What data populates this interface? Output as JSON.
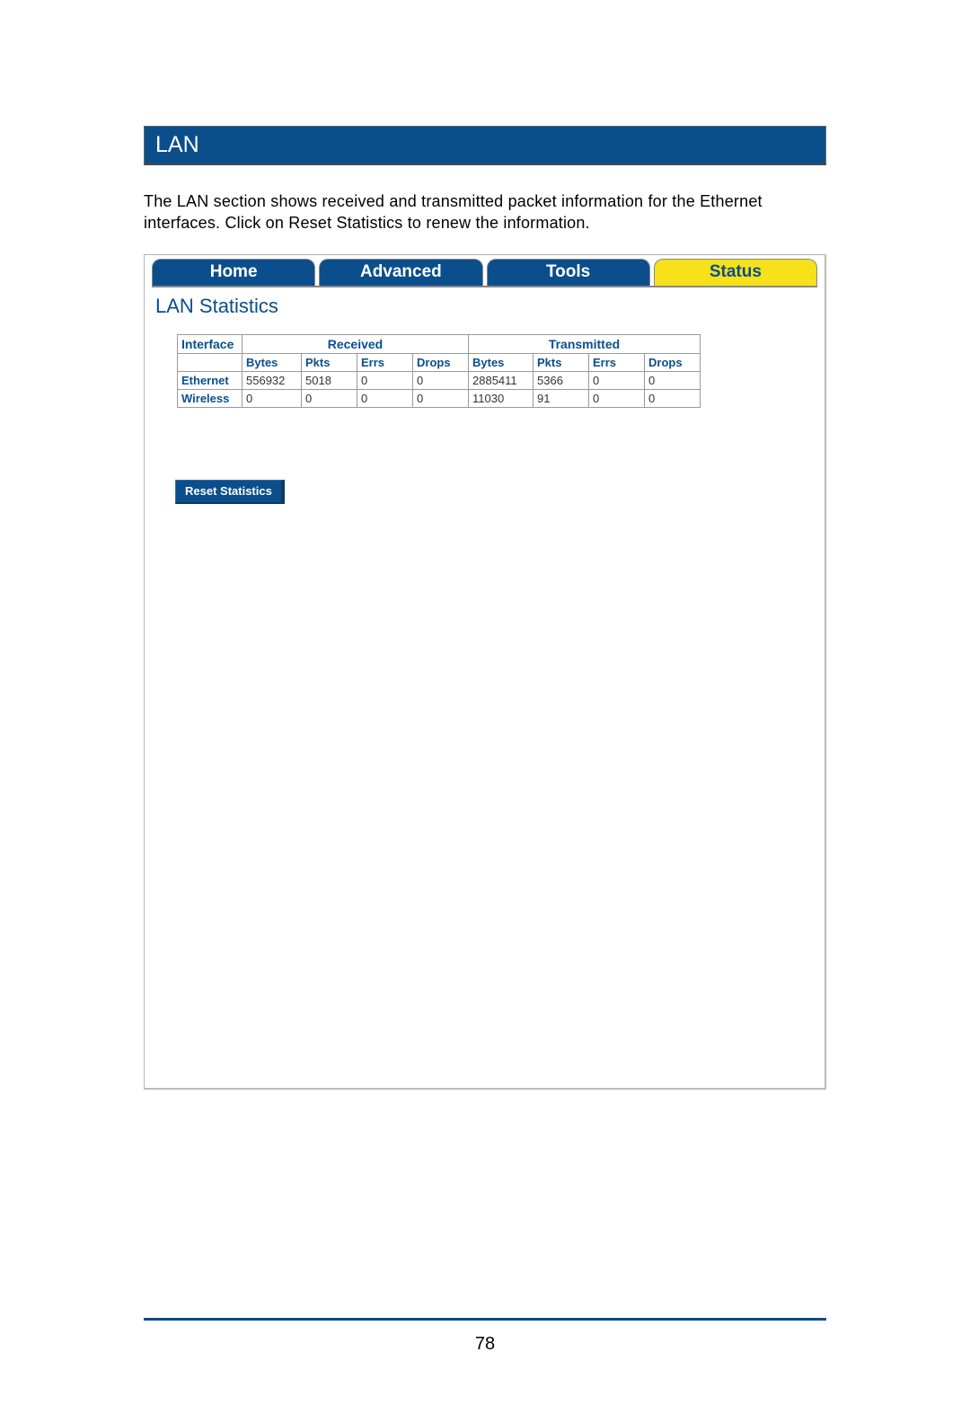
{
  "colors": {
    "header_bg": "#0a4e8c",
    "header_text": "#ffffff",
    "tab_inactive_bg": "#0a4e8c",
    "tab_inactive_text": "#ffffff",
    "tab_active_bg": "#f6e11a",
    "tab_active_text": "#0a4e8c",
    "panel_border": "#b5b5b5",
    "table_border": "#9a9a9a",
    "table_header_text": "#0a4e8c",
    "table_data_text": "#333333",
    "footer_line": "#0a4e8c"
  },
  "section": {
    "title": "LAN",
    "description": "The LAN section shows received and transmitted packet information for the Ethernet interfaces.  Click on Reset Statistics to renew the information."
  },
  "tabs": {
    "items": [
      {
        "label": "Home",
        "active": false
      },
      {
        "label": "Advanced",
        "active": false
      },
      {
        "label": "Tools",
        "active": false
      },
      {
        "label": "Status",
        "active": true
      }
    ]
  },
  "panel": {
    "title": "LAN Statistics",
    "reset_label": "Reset Statistics"
  },
  "table": {
    "header_interface": "Interface",
    "group_received": "Received",
    "group_transmitted": "Transmitted",
    "sub_headers": {
      "bytes": "Bytes",
      "pkts": "Pkts",
      "errs": "Errs",
      "drops": "Drops"
    },
    "rows": [
      {
        "iface": "Ethernet",
        "rx": {
          "bytes": "556932",
          "pkts": "5018",
          "errs": "0",
          "drops": "0"
        },
        "tx": {
          "bytes": "2885411",
          "pkts": "5366",
          "errs": "0",
          "drops": "0"
        }
      },
      {
        "iface": "Wireless",
        "rx": {
          "bytes": "0",
          "pkts": "0",
          "errs": "0",
          "drops": "0"
        },
        "tx": {
          "bytes": "11030",
          "pkts": "91",
          "errs": "0",
          "drops": "0"
        }
      }
    ]
  },
  "page_number": "78"
}
